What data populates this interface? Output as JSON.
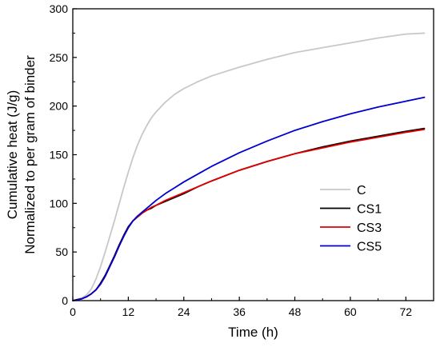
{
  "chart_data": {
    "type": "line",
    "xlabel": "Time (h)",
    "ylabel_line1": "Cumulative heat (J/g)",
    "ylabel_line2": "Normalized to per gram of binder",
    "xlim": [
      0,
      78
    ],
    "ylim": [
      0,
      300
    ],
    "xticks": [
      0,
      12,
      24,
      36,
      48,
      60,
      72
    ],
    "yticks": [
      0,
      50,
      100,
      150,
      200,
      250,
      300
    ],
    "grid": false,
    "legend_position": "right",
    "series": [
      {
        "name": "C",
        "color": "#c8c8c8",
        "x": [
          0,
          2,
          3,
          4,
          5,
          6,
          7,
          8,
          9,
          10,
          11,
          12,
          13,
          14,
          15,
          16,
          17,
          18,
          19,
          20,
          22,
          24,
          27,
          30,
          36,
          42,
          48,
          54,
          60,
          66,
          72,
          76
        ],
        "y": [
          0,
          3,
          6,
          12,
          22,
          35,
          50,
          66,
          82,
          99,
          116,
          132,
          147,
          160,
          171,
          180,
          188,
          194,
          199,
          204,
          212,
          218,
          225,
          231,
          240,
          248,
          255,
          260,
          265,
          270,
          274,
          275
        ]
      },
      {
        "name": "CS1",
        "color": "#000000",
        "x": [
          0,
          2,
          3,
          4,
          5,
          6,
          7,
          8,
          9,
          10,
          11,
          12,
          13,
          14,
          15,
          16,
          17,
          18,
          20,
          22,
          24,
          27,
          30,
          36,
          42,
          48,
          54,
          60,
          66,
          72,
          76
        ],
        "y": [
          0,
          2,
          4,
          7,
          11,
          18,
          26,
          36,
          46,
          57,
          67,
          76,
          82,
          86,
          90,
          93,
          95,
          98,
          102,
          106,
          110,
          117,
          123,
          134,
          143,
          151,
          158,
          164,
          169,
          174,
          177
        ]
      },
      {
        "name": "CS3",
        "color": "#e00000",
        "x": [
          0,
          2,
          3,
          4,
          5,
          6,
          7,
          8,
          9,
          10,
          11,
          12,
          13,
          14,
          15,
          16,
          17,
          18,
          20,
          22,
          24,
          27,
          30,
          36,
          42,
          48,
          54,
          60,
          66,
          72,
          76
        ],
        "y": [
          0,
          2,
          4,
          7,
          11,
          17,
          25,
          35,
          45,
          56,
          66,
          75,
          82,
          86,
          90,
          93,
          96,
          98,
          103,
          107,
          111,
          117,
          123,
          134,
          143,
          151,
          157,
          163,
          168,
          173,
          176
        ]
      },
      {
        "name": "CS5",
        "color": "#0000d0",
        "x": [
          0,
          2,
          3,
          4,
          5,
          6,
          7,
          8,
          9,
          10,
          11,
          12,
          13,
          14,
          15,
          16,
          17,
          18,
          20,
          22,
          24,
          27,
          30,
          36,
          42,
          48,
          54,
          60,
          66,
          72,
          76
        ],
        "y": [
          0,
          2,
          4,
          7,
          11,
          17,
          25,
          35,
          45,
          56,
          66,
          75,
          82,
          87,
          91,
          95,
          99,
          103,
          110,
          116,
          122,
          130,
          138,
          152,
          164,
          175,
          184,
          192,
          199,
          205,
          209
        ]
      }
    ]
  }
}
